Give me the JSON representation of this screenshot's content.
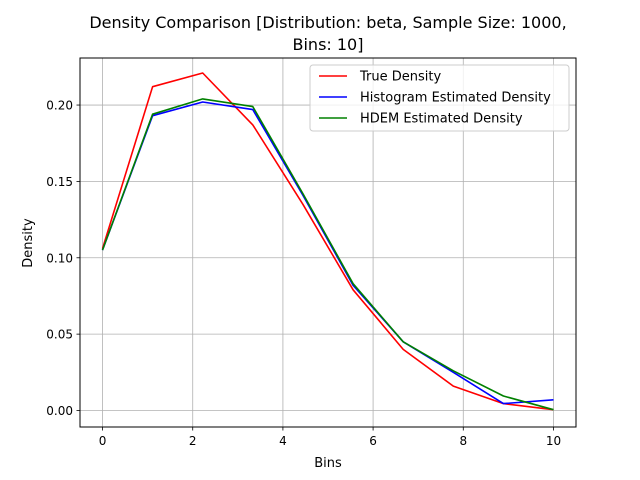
{
  "chart_data": {
    "type": "line",
    "title": "Density Comparison [Distribution: beta, Sample Size: 1000, Bins: 10]",
    "title_lines": [
      "Density Comparison [Distribution: beta, Sample Size: 1000,",
      "Bins: 10]"
    ],
    "xlabel": "Bins",
    "ylabel": "Density",
    "xlim": [
      -0.5,
      10.5
    ],
    "ylim": [
      -0.0108,
      0.2308
    ],
    "xticks": [
      0,
      2,
      4,
      6,
      8,
      10
    ],
    "xtick_labels": [
      "0",
      "2",
      "4",
      "6",
      "8",
      "10"
    ],
    "yticks": [
      0.0,
      0.05,
      0.1,
      0.15,
      0.2
    ],
    "ytick_labels": [
      "0.00",
      "0.05",
      "0.10",
      "0.15",
      "0.20"
    ],
    "grid": true,
    "legend_position": "top-right",
    "x": [
      0,
      1.111,
      2.222,
      3.333,
      4.444,
      5.556,
      6.667,
      7.778,
      8.889,
      10
    ],
    "series": [
      {
        "name": "True Density",
        "color": "#ff0000",
        "values": [
          0.106,
          0.212,
          0.221,
          0.187,
          0.135,
          0.079,
          0.04,
          0.016,
          0.0045,
          0.0005
        ]
      },
      {
        "name": "Histogram Estimated Density",
        "color": "#0000ff",
        "values": [
          0.105,
          0.193,
          0.202,
          0.197,
          0.141,
          0.082,
          0.045,
          0.025,
          0.0045,
          0.007
        ]
      },
      {
        "name": "HDEM Estimated Density",
        "color": "#008000",
        "values": [
          0.105,
          0.194,
          0.204,
          0.199,
          0.142,
          0.083,
          0.045,
          0.026,
          0.0095,
          0.0005
        ]
      }
    ]
  }
}
